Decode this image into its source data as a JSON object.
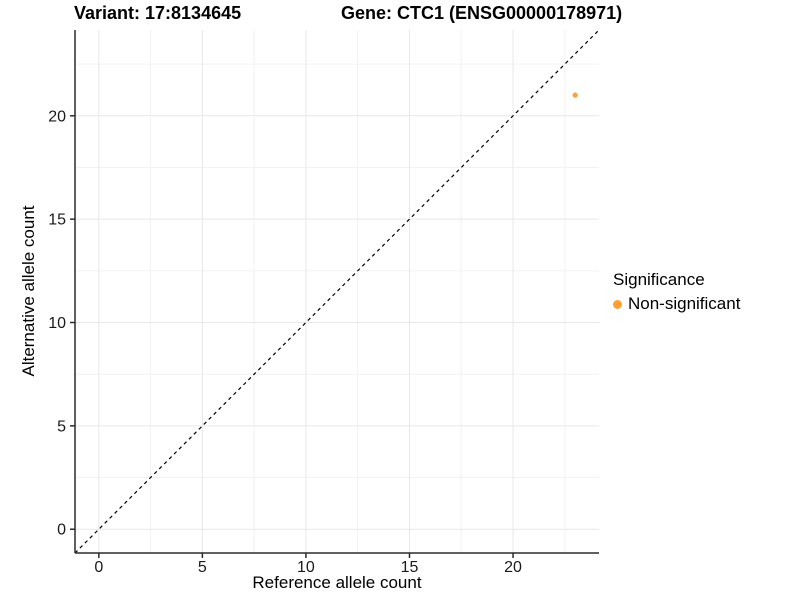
{
  "chart_data": {
    "type": "scatter",
    "title_left": "Variant: 17:8134645",
    "title_right": "Gene: CTC1 (ENSG00000178971)",
    "xlabel": "Reference allele count",
    "ylabel": "Alternative allele count",
    "xlim": [
      -1.15,
      24.15
    ],
    "ylim": [
      -1.15,
      24.15
    ],
    "x_ticks": [
      0,
      5,
      10,
      15,
      20
    ],
    "y_ticks": [
      0,
      5,
      10,
      15,
      20
    ],
    "x_minor_ticks": [
      2.5,
      7.5,
      12.5,
      17.5,
      22.5
    ],
    "y_minor_ticks": [
      2.5,
      7.5,
      12.5,
      17.5,
      22.5
    ],
    "grid": "on",
    "legend_position": "right",
    "series": [
      {
        "name": "Non-significant",
        "color": "#FFA033",
        "points": [
          {
            "x": 23,
            "y": 21
          }
        ]
      }
    ],
    "identity_line": {
      "type": "y=x",
      "style": "dashed",
      "color": "#000000"
    },
    "legend": {
      "title": "Significance",
      "items": [
        {
          "label": "Non-significant",
          "color": "#FFA033"
        }
      ]
    }
  }
}
